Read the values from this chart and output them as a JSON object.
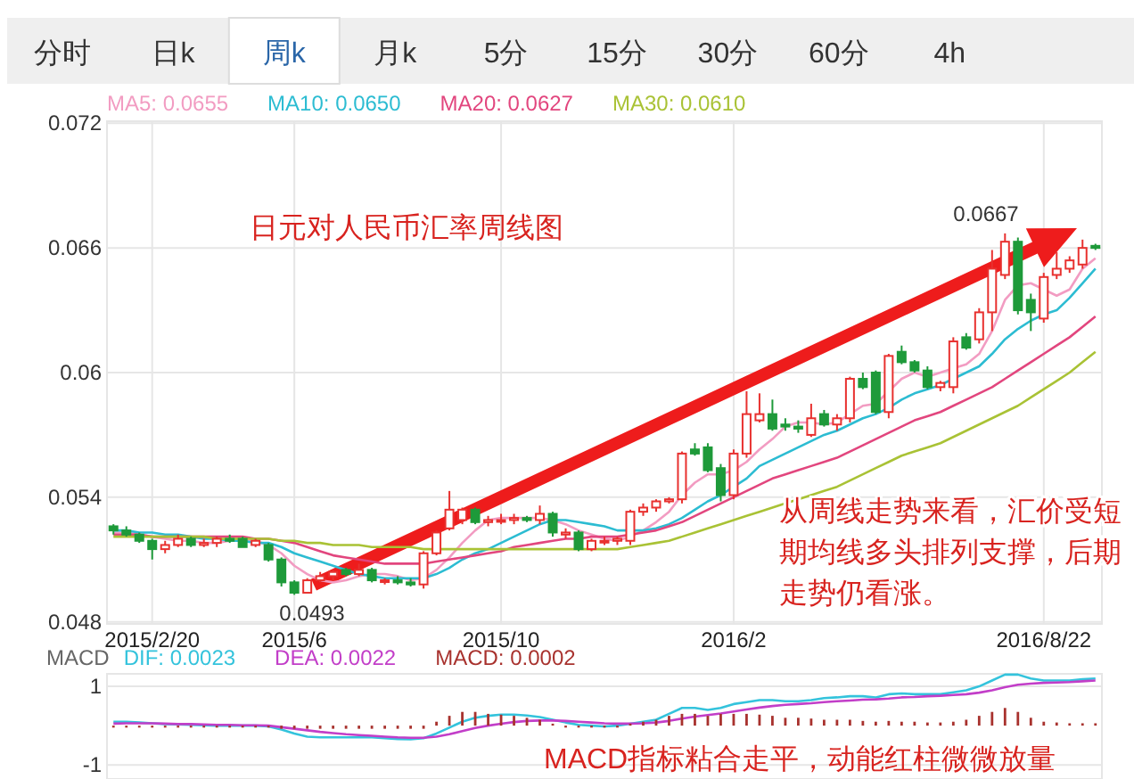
{
  "chart_data": [
    {
      "type": "other",
      "annotations": [
        "分时",
        "日k",
        "周k",
        "月k",
        "5分",
        "15分",
        "30分",
        "60分",
        "4h"
      ]
    },
    {
      "type": "candlestick",
      "title": "日元对人民币汇率周线图",
      "categories": [
        null,
        null,
        null,
        "2015/2/20",
        null,
        null,
        null,
        null,
        null,
        null,
        null,
        null,
        null,
        null,
        "2015/6",
        null,
        null,
        null,
        null,
        null,
        null,
        null,
        null,
        null,
        null,
        null,
        null,
        null,
        null,
        null,
        "2015/10",
        null,
        null,
        null,
        null,
        null,
        null,
        null,
        null,
        null,
        null,
        null,
        null,
        null,
        null,
        null,
        null,
        null,
        "2016/2",
        null,
        null,
        null,
        null,
        null,
        null,
        null,
        null,
        null,
        null,
        null,
        null,
        null,
        null,
        null,
        null,
        null,
        null,
        null,
        null,
        null,
        null,
        null,
        "2016/8/22",
        null,
        null,
        null,
        null
      ],
      "ohlc": [
        [
          0.0526,
          0.0527,
          0.0522,
          0.0524
        ],
        [
          0.0524,
          0.0526,
          0.0521,
          0.0522
        ],
        [
          0.0522,
          0.0523,
          0.0518,
          0.0519
        ],
        [
          0.0519,
          0.052,
          0.051,
          0.0515
        ],
        [
          0.0515,
          0.0519,
          0.0513,
          0.0517
        ],
        [
          0.0517,
          0.0522,
          0.0516,
          0.052
        ],
        [
          0.052,
          0.0521,
          0.0516,
          0.0517
        ],
        [
          0.0517,
          0.052,
          0.0516,
          0.0518
        ],
        [
          0.0518,
          0.0521,
          0.0516,
          0.052
        ],
        [
          0.052,
          0.0522,
          0.0518,
          0.0519
        ],
        [
          0.052,
          0.0521,
          0.0516,
          0.0516
        ],
        [
          0.0517,
          0.052,
          0.0516,
          0.0519
        ],
        [
          0.0517,
          0.0518,
          0.0509,
          0.051
        ],
        [
          0.051,
          0.0511,
          0.0497,
          0.0499
        ],
        [
          0.0499,
          0.05,
          0.0493,
          0.0494
        ],
        [
          0.0494,
          0.0501,
          0.0494,
          0.05
        ],
        [
          0.05,
          0.0504,
          0.0499,
          0.0502
        ],
        [
          0.0502,
          0.0505,
          0.05,
          0.0504
        ],
        [
          0.0505,
          0.0506,
          0.0502,
          0.0503
        ],
        [
          0.0503,
          0.0508,
          0.0502,
          0.0505
        ],
        [
          0.0505,
          0.0506,
          0.0499,
          0.05
        ],
        [
          0.05,
          0.0501,
          0.0498,
          0.05
        ],
        [
          0.05,
          0.0502,
          0.0498,
          0.0499
        ],
        [
          0.0499,
          0.0501,
          0.0497,
          0.0498
        ],
        [
          0.0498,
          0.0514,
          0.0496,
          0.0513
        ],
        [
          0.0513,
          0.0524,
          0.0512,
          0.0523
        ],
        [
          0.0525,
          0.0543,
          0.0524,
          0.0534
        ],
        [
          0.0529,
          0.0535,
          0.0527,
          0.0534
        ],
        [
          0.0534,
          0.0535,
          0.0527,
          0.0528
        ],
        [
          0.0528,
          0.0531,
          0.0526,
          0.0529
        ],
        [
          0.0529,
          0.0532,
          0.0527,
          0.0529
        ],
        [
          0.0529,
          0.0532,
          0.0527,
          0.053
        ],
        [
          0.053,
          0.0531,
          0.0528,
          0.0529
        ],
        [
          0.0529,
          0.0536,
          0.0527,
          0.0532
        ],
        [
          0.0532,
          0.0533,
          0.0521,
          0.0523
        ],
        [
          0.0522,
          0.0525,
          0.052,
          0.0523
        ],
        [
          0.0523,
          0.0524,
          0.0514,
          0.0515
        ],
        [
          0.0515,
          0.052,
          0.0514,
          0.0519
        ],
        [
          0.0519,
          0.0521,
          0.0517,
          0.0519
        ],
        [
          0.0519,
          0.0521,
          0.0517,
          0.052
        ],
        [
          0.0519,
          0.0534,
          0.0517,
          0.0533
        ],
        [
          0.0533,
          0.0537,
          0.0531,
          0.0535
        ],
        [
          0.0535,
          0.0539,
          0.0533,
          0.0538
        ],
        [
          0.0538,
          0.054,
          0.0537,
          0.0539
        ],
        [
          0.0539,
          0.0562,
          0.0537,
          0.0561
        ],
        [
          0.0563,
          0.0566,
          0.056,
          0.0561
        ],
        [
          0.0564,
          0.0566,
          0.0552,
          0.0553
        ],
        [
          0.0554,
          0.0556,
          0.0538,
          0.0541
        ],
        [
          0.0541,
          0.0563,
          0.0539,
          0.0561
        ],
        [
          0.0561,
          0.0591,
          0.0559,
          0.058
        ],
        [
          0.0577,
          0.059,
          0.0576,
          0.058
        ],
        [
          0.058,
          0.0587,
          0.0572,
          0.0573
        ],
        [
          0.0575,
          0.0578,
          0.0572,
          0.0574
        ],
        [
          0.0574,
          0.0577,
          0.0571,
          0.0573
        ],
        [
          0.057,
          0.0585,
          0.0569,
          0.0578
        ],
        [
          0.058,
          0.0582,
          0.0574,
          0.0575
        ],
        [
          0.0575,
          0.058,
          0.0572,
          0.0578
        ],
        [
          0.0578,
          0.0598,
          0.0576,
          0.0597
        ],
        [
          0.0597,
          0.06,
          0.0592,
          0.0593
        ],
        [
          0.06,
          0.0601,
          0.058,
          0.0581
        ],
        [
          0.0581,
          0.0609,
          0.0578,
          0.0608
        ],
        [
          0.061,
          0.0613,
          0.0604,
          0.0605
        ],
        [
          0.0605,
          0.0606,
          0.06,
          0.0601
        ],
        [
          0.0601,
          0.0603,
          0.0592,
          0.0593
        ],
        [
          0.0593,
          0.0596,
          0.0591,
          0.0595
        ],
        [
          0.0593,
          0.0617,
          0.059,
          0.0615
        ],
        [
          0.0617,
          0.0619,
          0.0611,
          0.0612
        ],
        [
          0.0616,
          0.0631,
          0.0614,
          0.0629
        ],
        [
          0.0629,
          0.0659,
          0.062,
          0.065
        ],
        [
          0.0647,
          0.0667,
          0.0645,
          0.0663
        ],
        [
          0.0663,
          0.0665,
          0.0628,
          0.063
        ],
        [
          0.0635,
          0.0638,
          0.062,
          0.0629
        ],
        [
          0.0626,
          0.0648,
          0.0624,
          0.0646
        ],
        [
          0.0647,
          0.0658,
          0.0645,
          0.065
        ],
        [
          0.065,
          0.0656,
          0.0648,
          0.0654
        ],
        [
          0.0652,
          0.0664,
          0.065,
          0.066
        ],
        [
          0.0661,
          0.0662,
          0.0659,
          0.066
        ]
      ],
      "series": [
        {
          "type": "line",
          "name": "MA5: 0.0655",
          "color": "#f29cc2",
          "values": [
            0.0523,
            0.0523,
            0.0522,
            0.0521,
            0.052,
            0.0519,
            0.0519,
            0.0518,
            0.0518,
            0.0519,
            0.0519,
            0.0519,
            0.0517,
            0.0513,
            0.0507,
            0.0503,
            0.05,
            0.0499,
            0.05,
            0.0502,
            0.0503,
            0.0503,
            0.0502,
            0.05,
            0.0501,
            0.0505,
            0.0511,
            0.0518,
            0.0524,
            0.0529,
            0.053,
            0.053,
            0.053,
            0.053,
            0.0529,
            0.0527,
            0.0524,
            0.0522,
            0.052,
            0.0519,
            0.0521,
            0.0524,
            0.0528,
            0.0533,
            0.0541,
            0.0547,
            0.0551,
            0.0551,
            0.0553,
            0.0557,
            0.0563,
            0.0568,
            0.0574,
            0.0576,
            0.0576,
            0.0575,
            0.0576,
            0.058,
            0.0584,
            0.0585,
            0.0591,
            0.0597,
            0.06,
            0.0598,
            0.06,
            0.0602,
            0.0604,
            0.0609,
            0.062,
            0.0635,
            0.0642,
            0.0643,
            0.064,
            0.0637,
            0.064,
            0.065,
            0.0655
          ]
        },
        {
          "type": "line",
          "name": "MA10: 0.0650",
          "color": "#2cbcd2",
          "values": [
            0.0524,
            0.0524,
            0.0523,
            0.0523,
            0.0522,
            0.0522,
            0.0521,
            0.052,
            0.052,
            0.0519,
            0.0519,
            0.0518,
            0.0518,
            0.0516,
            0.0513,
            0.0511,
            0.0509,
            0.0507,
            0.0505,
            0.0503,
            0.0502,
            0.0501,
            0.0501,
            0.0501,
            0.0501,
            0.0503,
            0.0506,
            0.051,
            0.0513,
            0.0515,
            0.0518,
            0.0521,
            0.0524,
            0.0527,
            0.0529,
            0.0529,
            0.0528,
            0.0527,
            0.0526,
            0.0524,
            0.0524,
            0.0524,
            0.0525,
            0.0527,
            0.053,
            0.0534,
            0.0538,
            0.0541,
            0.0545,
            0.0549,
            0.0555,
            0.0558,
            0.0561,
            0.0564,
            0.0567,
            0.057,
            0.0572,
            0.0575,
            0.0578,
            0.058,
            0.0583,
            0.0587,
            0.059,
            0.0592,
            0.0594,
            0.0597,
            0.06,
            0.0603,
            0.0609,
            0.0616,
            0.0621,
            0.0625,
            0.0628,
            0.063,
            0.0636,
            0.0643,
            0.065
          ]
        },
        {
          "type": "line",
          "name": "MA20: 0.0627",
          "color": "#e2467e",
          "values": [
            0.0522,
            0.0522,
            0.0522,
            0.0521,
            0.0521,
            0.0521,
            0.0521,
            0.0521,
            0.0521,
            0.0521,
            0.0521,
            0.052,
            0.052,
            0.0519,
            0.0518,
            0.0516,
            0.0514,
            0.0512,
            0.0511,
            0.051,
            0.0509,
            0.0508,
            0.0508,
            0.0508,
            0.0508,
            0.0509,
            0.051,
            0.0511,
            0.0512,
            0.0513,
            0.0514,
            0.0516,
            0.0517,
            0.0518,
            0.0519,
            0.052,
            0.052,
            0.0521,
            0.0521,
            0.0521,
            0.0522,
            0.0523,
            0.0524,
            0.0526,
            0.0528,
            0.0531,
            0.0534,
            0.0537,
            0.054,
            0.0543,
            0.0546,
            0.0549,
            0.0551,
            0.0553,
            0.0555,
            0.0557,
            0.0559,
            0.0562,
            0.0565,
            0.0568,
            0.0571,
            0.0574,
            0.0577,
            0.0579,
            0.0581,
            0.0584,
            0.0587,
            0.059,
            0.0593,
            0.0597,
            0.0601,
            0.0605,
            0.0609,
            0.0613,
            0.0617,
            0.0622,
            0.0627
          ]
        },
        {
          "type": "line",
          "name": "MA30: 0.0610",
          "color": "#a9c235",
          "values": [
            0.0521,
            0.0521,
            0.0521,
            0.0521,
            0.0521,
            0.0521,
            0.0521,
            0.0521,
            0.052,
            0.052,
            0.052,
            0.052,
            0.052,
            0.0519,
            0.0519,
            0.0518,
            0.0518,
            0.0517,
            0.0517,
            0.0517,
            0.0516,
            0.0516,
            0.0516,
            0.0516,
            0.0515,
            0.0515,
            0.0515,
            0.0515,
            0.0515,
            0.0515,
            0.0515,
            0.0515,
            0.0515,
            0.0515,
            0.0515,
            0.0515,
            0.0515,
            0.0515,
            0.0515,
            0.0515,
            0.0516,
            0.0517,
            0.0518,
            0.0519,
            0.0521,
            0.0523,
            0.0525,
            0.0527,
            0.0529,
            0.0531,
            0.0533,
            0.0535,
            0.0537,
            0.0539,
            0.0541,
            0.0543,
            0.0545,
            0.0548,
            0.0551,
            0.0554,
            0.0557,
            0.056,
            0.0562,
            0.0564,
            0.0566,
            0.0569,
            0.0572,
            0.0575,
            0.0578,
            0.0581,
            0.0584,
            0.0588,
            0.0592,
            0.0596,
            0.06,
            0.0605,
            0.061
          ]
        }
      ],
      "ylim": [
        0.0479,
        0.0721
      ],
      "yticks": [
        0.048,
        0.054,
        0.06,
        0.066,
        0.072
      ],
      "grid": true,
      "legend": "top left",
      "annotations": [
        "从周线走势来看，汇价受短期均线多头排列支撑，后期走势仍看涨。",
        "0.0667",
        "0.0493"
      ]
    },
    {
      "type": "line",
      "title": "MACD",
      "categories": [
        null,
        null,
        null,
        null,
        null,
        null,
        null,
        null,
        null,
        null,
        null,
        null,
        null,
        null,
        null,
        null,
        null,
        null,
        null,
        null,
        null,
        null,
        null,
        null,
        null,
        null,
        null,
        null,
        null,
        null,
        null,
        null,
        null,
        null,
        null,
        null,
        null,
        null,
        null,
        null,
        null,
        null,
        null,
        null,
        null,
        null,
        null,
        null,
        null,
        null,
        null,
        null,
        null,
        null,
        null,
        null,
        null,
        null,
        null,
        null,
        null,
        null,
        null,
        null,
        null,
        null,
        null,
        null,
        null,
        null,
        null,
        null,
        null,
        null,
        null,
        null,
        null
      ],
      "series": [
        {
          "type": "line",
          "name": "DIF: 0.0023",
          "color": "#34c3dc",
          "values": [
            0.1,
            0.1,
            0.08,
            0.06,
            0.04,
            0.03,
            0.02,
            0.01,
            0,
            0,
            0,
            0,
            -0.02,
            -0.1,
            -0.2,
            -0.28,
            -0.3,
            -0.3,
            -0.3,
            -0.3,
            -0.3,
            -0.32,
            -0.34,
            -0.35,
            -0.32,
            -0.2,
            -0.05,
            0.1,
            0.2,
            0.25,
            0.28,
            0.28,
            0.26,
            0.22,
            0.15,
            0.08,
            0.02,
            0,
            -0.02,
            0,
            0.05,
            0.1,
            0.15,
            0.3,
            0.45,
            0.45,
            0.4,
            0.45,
            0.55,
            0.6,
            0.65,
            0.65,
            0.62,
            0.62,
            0.65,
            0.7,
            0.72,
            0.75,
            0.75,
            0.72,
            0.8,
            0.82,
            0.8,
            0.8,
            0.8,
            0.85,
            0.9,
            1.0,
            1.15,
            1.3,
            1.3,
            1.2,
            1.15,
            1.15,
            1.15,
            1.18,
            1.2
          ]
        },
        {
          "type": "line",
          "name": "DEA: 0.0022",
          "color": "#c23ec8",
          "values": [
            0.05,
            0.06,
            0.06,
            0.06,
            0.05,
            0.04,
            0.04,
            0.03,
            0.02,
            0.02,
            0.01,
            0.01,
            0,
            -0.04,
            -0.08,
            -0.12,
            -0.16,
            -0.19,
            -0.22,
            -0.24,
            -0.26,
            -0.28,
            -0.3,
            -0.31,
            -0.31,
            -0.28,
            -0.22,
            -0.14,
            -0.06,
            0,
            0.05,
            0.09,
            0.12,
            0.13,
            0.13,
            0.12,
            0.1,
            0.08,
            0.06,
            0.05,
            0.05,
            0.06,
            0.08,
            0.12,
            0.18,
            0.23,
            0.27,
            0.31,
            0.36,
            0.41,
            0.46,
            0.5,
            0.53,
            0.55,
            0.57,
            0.6,
            0.62,
            0.64,
            0.66,
            0.67,
            0.69,
            0.72,
            0.73,
            0.75,
            0.76,
            0.78,
            0.8,
            0.84,
            0.9,
            0.98,
            1.04,
            1.07,
            1.09,
            1.1,
            1.11,
            1.13,
            1.15
          ]
        },
        {
          "type": "bar",
          "name": "MACD: 0.0002",
          "color": "#a8322e",
          "values": [
            -0.05,
            -0.05,
            -0.05,
            -0.05,
            -0.05,
            -0.05,
            -0.05,
            -0.05,
            -0.05,
            -0.05,
            -0.05,
            -0.05,
            -0.05,
            -0.08,
            -0.08,
            -0.08,
            -0.08,
            -0.08,
            -0.08,
            -0.08,
            -0.08,
            -0.08,
            -0.08,
            -0.08,
            -0.08,
            0.1,
            0.25,
            0.35,
            0.35,
            0.3,
            0.28,
            0.25,
            0.2,
            0.15,
            0.05,
            -0.05,
            -0.05,
            -0.05,
            -0.05,
            -0.05,
            0.05,
            0.1,
            0.15,
            0.25,
            0.3,
            0.3,
            0.25,
            0.3,
            0.3,
            0.3,
            0.28,
            0.25,
            0.2,
            0.2,
            0.18,
            0.15,
            0.15,
            0.15,
            0.12,
            0.1,
            0.12,
            0.1,
            0.1,
            0.08,
            0.08,
            0.1,
            0.15,
            0.25,
            0.35,
            0.45,
            0.35,
            0.2,
            0.1,
            0.08,
            0.06,
            0.06,
            0.06
          ]
        }
      ],
      "ylim": [
        -1.36,
        1.32
      ],
      "yticks": [
        -1,
        1
      ],
      "grid": true,
      "legend": "top left",
      "tick_labels": "y",
      "annotations": [
        "MACD指标粘合走平，动能红柱微微放量"
      ]
    }
  ]
}
